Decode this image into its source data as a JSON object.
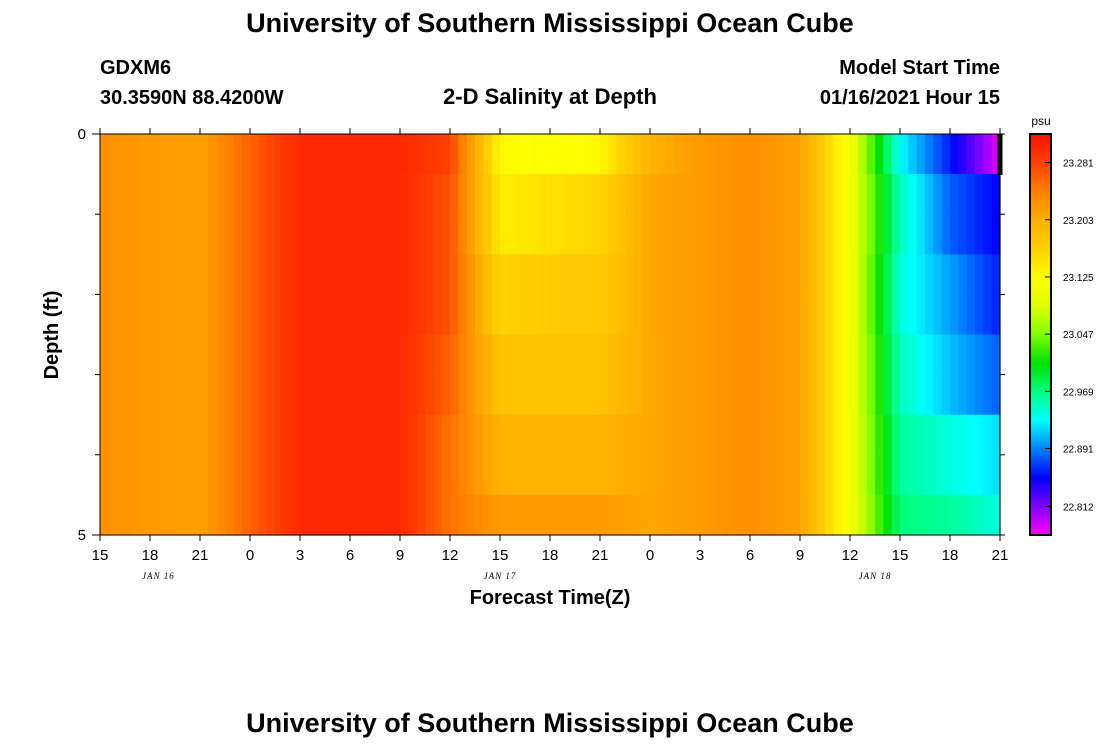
{
  "page": {
    "title_top": "University of Southern Mississippi Ocean Cube",
    "title_bottom": "University of Southern Mississippi Ocean Cube",
    "station_id": "GDXM6",
    "station_coords": "30.3590N 88.4200W",
    "plot_title": "2-D Salinity at Depth",
    "model_start_label": "Model Start Time",
    "model_start_value": "01/16/2021 Hour 15"
  },
  "chart_data": {
    "type": "heatmap",
    "title": "2-D Salinity at Depth",
    "xlabel": "Forecast Time(Z)",
    "ylabel": "Depth (ft)",
    "units": "psu",
    "x_tick_labels": [
      "15",
      "18",
      "21",
      "0",
      "3",
      "6",
      "9",
      "12",
      "15",
      "18",
      "21",
      "0",
      "3",
      "6",
      "9",
      "12",
      "15",
      "18",
      "21"
    ],
    "date_labels": [
      {
        "label": "JAN 16",
        "at_hour": 3.5
      },
      {
        "label": "JAN 17",
        "at_hour": 24
      },
      {
        "label": "JAN 18",
        "at_hour": 46.5
      }
    ],
    "x_range_hours": [
      0,
      54
    ],
    "y_tick_labels": [
      "0",
      "5"
    ],
    "ylim": [
      0,
      5
    ],
    "y_inverted": true,
    "colorbar": {
      "tick_labels": [
        "23.281",
        "23.203",
        "23.125",
        "23.047",
        "22.969",
        "22.891",
        "22.812"
      ],
      "tick_values": [
        23.281,
        23.203,
        23.125,
        23.047,
        22.969,
        22.891,
        22.812
      ],
      "min": 22.773,
      "max": 23.32,
      "colors": [
        "#ff00ff",
        "#8000ff",
        "#0000ff",
        "#0080ff",
        "#00ffff",
        "#00ff80",
        "#00e000",
        "#80ff00",
        "#e0ff00",
        "#ffff00",
        "#ffd000",
        "#ffb000",
        "#ff8000",
        "#ff4000",
        "#ff1000"
      ]
    },
    "time_hours": [
      0,
      3,
      6,
      9,
      12,
      15,
      18,
      21,
      24,
      27,
      30,
      33,
      36,
      39,
      42,
      45,
      48,
      51,
      54
    ],
    "depth_layers": [
      {
        "depth_top": 0,
        "depth_bottom": 0.5,
        "values": [
          23.23,
          23.22,
          23.215,
          23.26,
          23.3,
          23.3,
          23.3,
          23.28,
          23.13,
          23.12,
          23.13,
          23.2,
          23.22,
          23.23,
          23.215,
          23.11,
          22.93,
          22.86,
          22.78
        ]
      },
      {
        "depth_top": 0.5,
        "depth_bottom": 1,
        "values": [
          23.23,
          23.22,
          23.215,
          23.26,
          23.3,
          23.3,
          23.3,
          23.27,
          23.14,
          23.15,
          23.16,
          23.21,
          23.22,
          23.23,
          23.215,
          23.11,
          22.95,
          22.88,
          22.85
        ]
      },
      {
        "depth_top": 1,
        "depth_bottom": 1.5,
        "values": [
          23.23,
          23.22,
          23.215,
          23.26,
          23.3,
          23.3,
          23.3,
          23.27,
          23.14,
          23.15,
          23.16,
          23.21,
          23.22,
          23.23,
          23.215,
          23.11,
          22.95,
          22.88,
          22.85
        ]
      },
      {
        "depth_top": 1.5,
        "depth_bottom": 2,
        "values": [
          23.23,
          23.22,
          23.215,
          23.26,
          23.3,
          23.3,
          23.3,
          23.27,
          23.16,
          23.17,
          23.17,
          23.21,
          23.22,
          23.23,
          23.215,
          23.11,
          22.94,
          22.9,
          22.86
        ]
      },
      {
        "depth_top": 2,
        "depth_bottom": 2.5,
        "values": [
          23.23,
          23.22,
          23.215,
          23.26,
          23.3,
          23.3,
          23.3,
          23.27,
          23.16,
          23.17,
          23.17,
          23.21,
          23.22,
          23.23,
          23.215,
          23.11,
          22.94,
          22.9,
          22.86
        ]
      },
      {
        "depth_top": 2.5,
        "depth_bottom": 3,
        "values": [
          23.23,
          23.22,
          23.215,
          23.26,
          23.3,
          23.3,
          23.3,
          23.26,
          23.18,
          23.18,
          23.18,
          23.21,
          23.22,
          23.23,
          23.215,
          23.11,
          22.95,
          22.91,
          22.88
        ]
      },
      {
        "depth_top": 3,
        "depth_bottom": 3.5,
        "values": [
          23.23,
          23.22,
          23.215,
          23.26,
          23.3,
          23.3,
          23.3,
          23.26,
          23.18,
          23.18,
          23.18,
          23.21,
          23.22,
          23.23,
          23.215,
          23.11,
          22.95,
          22.91,
          22.88
        ]
      },
      {
        "depth_top": 3.5,
        "depth_bottom": 4,
        "values": [
          23.23,
          23.22,
          23.215,
          23.26,
          23.3,
          23.3,
          23.3,
          23.25,
          23.2,
          23.2,
          23.2,
          23.21,
          23.22,
          23.23,
          23.215,
          23.11,
          22.96,
          22.94,
          22.92
        ]
      },
      {
        "depth_top": 4,
        "depth_bottom": 4.5,
        "values": [
          23.23,
          23.22,
          23.215,
          23.26,
          23.3,
          23.3,
          23.3,
          23.25,
          23.2,
          23.2,
          23.2,
          23.21,
          23.22,
          23.23,
          23.215,
          23.11,
          22.96,
          22.94,
          22.92
        ]
      },
      {
        "depth_top": 4.5,
        "depth_bottom": 5,
        "values": [
          23.23,
          23.22,
          23.215,
          23.26,
          23.3,
          23.3,
          23.3,
          23.25,
          23.22,
          23.22,
          23.22,
          23.21,
          23.22,
          23.23,
          23.215,
          23.11,
          22.97,
          22.96,
          22.94
        ]
      }
    ]
  }
}
